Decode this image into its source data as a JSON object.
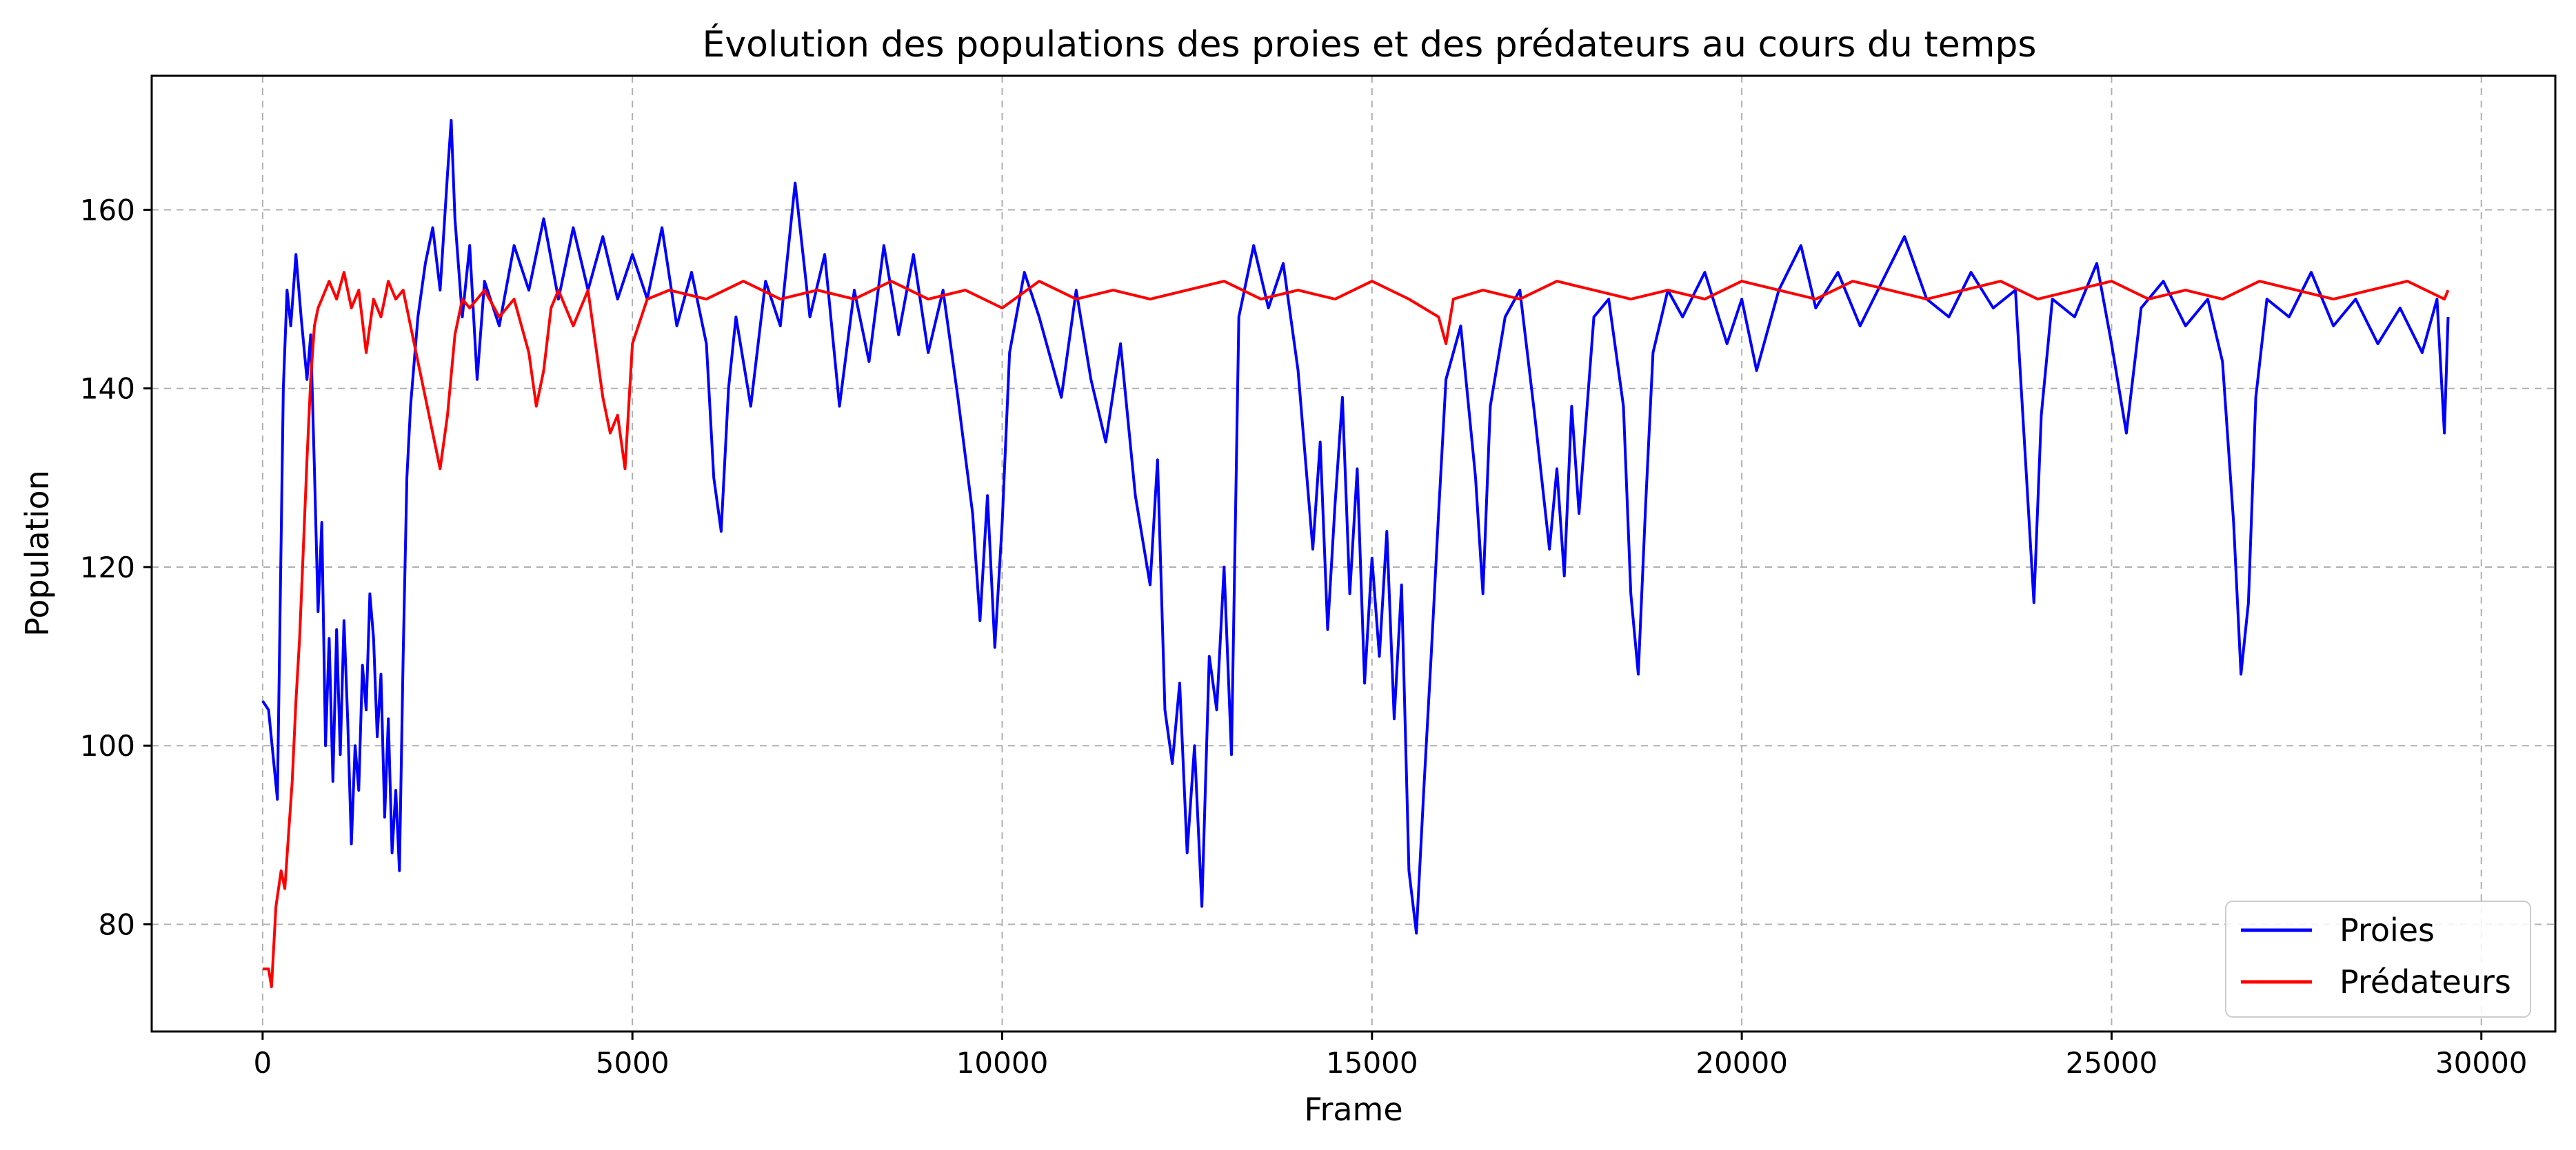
{
  "chart_data": {
    "type": "line",
    "title": "Évolution des populations des proies et des prédateurs au cours du temps",
    "xlabel": "Frame",
    "ylabel": "Population",
    "xlim": [
      -1500,
      31000
    ],
    "ylim": [
      68,
      175
    ],
    "xticks": [
      0,
      5000,
      10000,
      15000,
      20000,
      25000,
      30000
    ],
    "yticks": [
      80,
      100,
      120,
      140,
      160
    ],
    "grid": true,
    "grid_style": "dashed",
    "legend_position": "bottom-right",
    "series": [
      {
        "name": "Proies",
        "color": "#0000ff",
        "points": [
          [
            0,
            105
          ],
          [
            80,
            104
          ],
          [
            200,
            94
          ],
          [
            280,
            140
          ],
          [
            330,
            151
          ],
          [
            380,
            147
          ],
          [
            450,
            155
          ],
          [
            520,
            148
          ],
          [
            600,
            141
          ],
          [
            650,
            146
          ],
          [
            700,
            131
          ],
          [
            750,
            115
          ],
          [
            800,
            125
          ],
          [
            850,
            100
          ],
          [
            900,
            112
          ],
          [
            950,
            96
          ],
          [
            1000,
            113
          ],
          [
            1050,
            99
          ],
          [
            1100,
            114
          ],
          [
            1150,
            103
          ],
          [
            1200,
            89
          ],
          [
            1250,
            100
          ],
          [
            1300,
            95
          ],
          [
            1350,
            109
          ],
          [
            1400,
            104
          ],
          [
            1450,
            117
          ],
          [
            1500,
            112
          ],
          [
            1550,
            101
          ],
          [
            1600,
            108
          ],
          [
            1650,
            92
          ],
          [
            1700,
            103
          ],
          [
            1750,
            88
          ],
          [
            1800,
            95
          ],
          [
            1850,
            86
          ],
          [
            1900,
            110
          ],
          [
            1950,
            130
          ],
          [
            2000,
            138
          ],
          [
            2100,
            148
          ],
          [
            2200,
            154
          ],
          [
            2300,
            158
          ],
          [
            2400,
            151
          ],
          [
            2500,
            164
          ],
          [
            2550,
            170
          ],
          [
            2600,
            159
          ],
          [
            2700,
            148
          ],
          [
            2800,
            156
          ],
          [
            2900,
            141
          ],
          [
            3000,
            152
          ],
          [
            3200,
            147
          ],
          [
            3400,
            156
          ],
          [
            3600,
            151
          ],
          [
            3800,
            159
          ],
          [
            4000,
            150
          ],
          [
            4200,
            158
          ],
          [
            4400,
            151
          ],
          [
            4600,
            157
          ],
          [
            4800,
            150
          ],
          [
            5000,
            155
          ],
          [
            5200,
            150
          ],
          [
            5400,
            158
          ],
          [
            5600,
            147
          ],
          [
            5800,
            153
          ],
          [
            6000,
            145
          ],
          [
            6100,
            130
          ],
          [
            6200,
            124
          ],
          [
            6300,
            140
          ],
          [
            6400,
            148
          ],
          [
            6600,
            138
          ],
          [
            6800,
            152
          ],
          [
            7000,
            147
          ],
          [
            7200,
            163
          ],
          [
            7400,
            148
          ],
          [
            7600,
            155
          ],
          [
            7800,
            138
          ],
          [
            8000,
            151
          ],
          [
            8200,
            143
          ],
          [
            8400,
            156
          ],
          [
            8600,
            146
          ],
          [
            8800,
            155
          ],
          [
            9000,
            144
          ],
          [
            9200,
            151
          ],
          [
            9400,
            139
          ],
          [
            9600,
            126
          ],
          [
            9700,
            114
          ],
          [
            9800,
            128
          ],
          [
            9900,
            111
          ],
          [
            10000,
            125
          ],
          [
            10100,
            144
          ],
          [
            10300,
            153
          ],
          [
            10500,
            148
          ],
          [
            10800,
            139
          ],
          [
            11000,
            151
          ],
          [
            11200,
            141
          ],
          [
            11400,
            134
          ],
          [
            11600,
            145
          ],
          [
            11800,
            128
          ],
          [
            12000,
            118
          ],
          [
            12100,
            132
          ],
          [
            12200,
            104
          ],
          [
            12300,
            98
          ],
          [
            12400,
            107
          ],
          [
            12500,
            88
          ],
          [
            12600,
            100
          ],
          [
            12700,
            82
          ],
          [
            12800,
            110
          ],
          [
            12900,
            104
          ],
          [
            13000,
            120
          ],
          [
            13100,
            99
          ],
          [
            13200,
            148
          ],
          [
            13400,
            156
          ],
          [
            13600,
            149
          ],
          [
            13800,
            154
          ],
          [
            14000,
            142
          ],
          [
            14200,
            122
          ],
          [
            14300,
            134
          ],
          [
            14400,
            113
          ],
          [
            14500,
            127
          ],
          [
            14600,
            139
          ],
          [
            14700,
            117
          ],
          [
            14800,
            131
          ],
          [
            14900,
            107
          ],
          [
            15000,
            121
          ],
          [
            15100,
            110
          ],
          [
            15200,
            124
          ],
          [
            15300,
            103
          ],
          [
            15400,
            118
          ],
          [
            15500,
            86
          ],
          [
            15600,
            79
          ],
          [
            15700,
            95
          ],
          [
            15800,
            110
          ],
          [
            15900,
            126
          ],
          [
            16000,
            141
          ],
          [
            16200,
            147
          ],
          [
            16400,
            130
          ],
          [
            16500,
            117
          ],
          [
            16600,
            138
          ],
          [
            16800,
            148
          ],
          [
            17000,
            151
          ],
          [
            17200,
            137
          ],
          [
            17400,
            122
          ],
          [
            17500,
            131
          ],
          [
            17600,
            119
          ],
          [
            17700,
            138
          ],
          [
            17800,
            126
          ],
          [
            18000,
            148
          ],
          [
            18200,
            150
          ],
          [
            18400,
            138
          ],
          [
            18500,
            117
          ],
          [
            18600,
            108
          ],
          [
            18700,
            127
          ],
          [
            18800,
            144
          ],
          [
            19000,
            151
          ],
          [
            19200,
            148
          ],
          [
            19500,
            153
          ],
          [
            19800,
            145
          ],
          [
            20000,
            150
          ],
          [
            20200,
            142
          ],
          [
            20500,
            151
          ],
          [
            20800,
            156
          ],
          [
            21000,
            149
          ],
          [
            21300,
            153
          ],
          [
            21600,
            147
          ],
          [
            21900,
            152
          ],
          [
            22200,
            157
          ],
          [
            22500,
            150
          ],
          [
            22800,
            148
          ],
          [
            23100,
            153
          ],
          [
            23400,
            149
          ],
          [
            23700,
            151
          ],
          [
            23850,
            130
          ],
          [
            23950,
            116
          ],
          [
            24050,
            137
          ],
          [
            24200,
            150
          ],
          [
            24500,
            148
          ],
          [
            24800,
            154
          ],
          [
            25000,
            145
          ],
          [
            25200,
            135
          ],
          [
            25400,
            149
          ],
          [
            25700,
            152
          ],
          [
            26000,
            147
          ],
          [
            26300,
            150
          ],
          [
            26500,
            143
          ],
          [
            26650,
            125
          ],
          [
            26750,
            108
          ],
          [
            26850,
            116
          ],
          [
            26950,
            139
          ],
          [
            27100,
            150
          ],
          [
            27400,
            148
          ],
          [
            27700,
            153
          ],
          [
            28000,
            147
          ],
          [
            28300,
            150
          ],
          [
            28600,
            145
          ],
          [
            28900,
            149
          ],
          [
            29200,
            144
          ],
          [
            29400,
            150
          ],
          [
            29500,
            135
          ],
          [
            29550,
            148
          ]
        ]
      },
      {
        "name": "Prédateurs",
        "color": "#ff0000",
        "points": [
          [
            0,
            75
          ],
          [
            80,
            75
          ],
          [
            120,
            73
          ],
          [
            180,
            82
          ],
          [
            250,
            86
          ],
          [
            300,
            84
          ],
          [
            350,
            90
          ],
          [
            400,
            96
          ],
          [
            450,
            105
          ],
          [
            500,
            112
          ],
          [
            550,
            122
          ],
          [
            600,
            132
          ],
          [
            650,
            141
          ],
          [
            700,
            147
          ],
          [
            750,
            149
          ],
          [
            800,
            150
          ],
          [
            900,
            152
          ],
          [
            1000,
            150
          ],
          [
            1100,
            153
          ],
          [
            1200,
            149
          ],
          [
            1300,
            151
          ],
          [
            1400,
            144
          ],
          [
            1500,
            150
          ],
          [
            1600,
            148
          ],
          [
            1700,
            152
          ],
          [
            1800,
            150
          ],
          [
            1900,
            151
          ],
          [
            2000,
            147
          ],
          [
            2100,
            143
          ],
          [
            2200,
            139
          ],
          [
            2300,
            135
          ],
          [
            2400,
            131
          ],
          [
            2500,
            137
          ],
          [
            2600,
            146
          ],
          [
            2700,
            150
          ],
          [
            2800,
            149
          ],
          [
            3000,
            151
          ],
          [
            3200,
            148
          ],
          [
            3400,
            150
          ],
          [
            3600,
            144
          ],
          [
            3700,
            138
          ],
          [
            3800,
            142
          ],
          [
            3900,
            149
          ],
          [
            4000,
            151
          ],
          [
            4200,
            147
          ],
          [
            4400,
            151
          ],
          [
            4500,
            145
          ],
          [
            4600,
            139
          ],
          [
            4700,
            135
          ],
          [
            4800,
            137
          ],
          [
            4900,
            131
          ],
          [
            5000,
            145
          ],
          [
            5200,
            150
          ],
          [
            5500,
            151
          ],
          [
            6000,
            150
          ],
          [
            6500,
            152
          ],
          [
            7000,
            150
          ],
          [
            7500,
            151
          ],
          [
            8000,
            150
          ],
          [
            8500,
            152
          ],
          [
            9000,
            150
          ],
          [
            9500,
            151
          ],
          [
            10000,
            149
          ],
          [
            10500,
            152
          ],
          [
            11000,
            150
          ],
          [
            11500,
            151
          ],
          [
            12000,
            150
          ],
          [
            12500,
            151
          ],
          [
            13000,
            152
          ],
          [
            13500,
            150
          ],
          [
            14000,
            151
          ],
          [
            14500,
            150
          ],
          [
            15000,
            152
          ],
          [
            15500,
            150
          ],
          [
            15900,
            148
          ],
          [
            16000,
            145
          ],
          [
            16100,
            150
          ],
          [
            16500,
            151
          ],
          [
            17000,
            150
          ],
          [
            17500,
            152
          ],
          [
            18000,
            151
          ],
          [
            18500,
            150
          ],
          [
            19000,
            151
          ],
          [
            19500,
            150
          ],
          [
            20000,
            152
          ],
          [
            20500,
            151
          ],
          [
            21000,
            150
          ],
          [
            21500,
            152
          ],
          [
            22000,
            151
          ],
          [
            22500,
            150
          ],
          [
            23000,
            151
          ],
          [
            23500,
            152
          ],
          [
            24000,
            150
          ],
          [
            24500,
            151
          ],
          [
            25000,
            152
          ],
          [
            25500,
            150
          ],
          [
            26000,
            151
          ],
          [
            26500,
            150
          ],
          [
            27000,
            152
          ],
          [
            27500,
            151
          ],
          [
            28000,
            150
          ],
          [
            28500,
            151
          ],
          [
            29000,
            152
          ],
          [
            29500,
            150
          ],
          [
            29550,
            151
          ]
        ]
      }
    ]
  }
}
